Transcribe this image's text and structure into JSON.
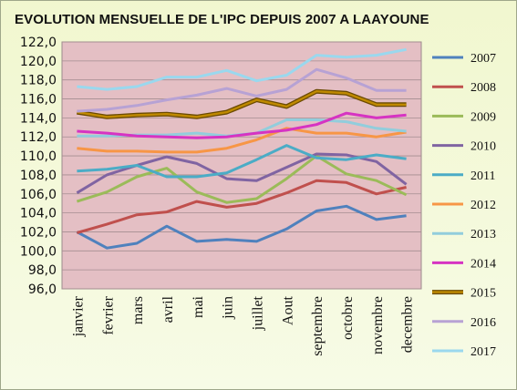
{
  "chart_data": {
    "type": "line",
    "title": "EVOLUTION MENSUELLE DE L'IPC DEPUIS 2007 A LAAYOUNE",
    "categories": [
      "janvier",
      "fevrier",
      "mars",
      "avril",
      "mai",
      "juin",
      "juillet",
      "Aout",
      "septembre",
      "octobre",
      "novembre",
      "decembre"
    ],
    "ylim": [
      96,
      122
    ],
    "ystep": 2,
    "ytick_labels": [
      "96,0",
      "98,0",
      "100,0",
      "102,0",
      "104,0",
      "106,0",
      "108,0",
      "110,0",
      "112,0",
      "114,0",
      "116,0",
      "118,0",
      "120,0",
      "122,0"
    ],
    "grid": true,
    "legend_position": "right",
    "plot_background": "#e4bfc4",
    "series": [
      {
        "name": "2007",
        "color": "#4f81bd",
        "values": [
          102.0,
          100.3,
          100.8,
          102.6,
          101.0,
          101.2,
          101.0,
          102.3,
          104.2,
          104.7,
          103.3,
          103.7
        ]
      },
      {
        "name": "2008",
        "color": "#c0504d",
        "values": [
          101.9,
          102.8,
          103.8,
          104.1,
          105.2,
          104.6,
          105.0,
          106.1,
          107.4,
          107.2,
          106.0,
          106.7
        ]
      },
      {
        "name": "2009",
        "color": "#9bbb59",
        "values": [
          105.2,
          106.2,
          107.8,
          108.7,
          106.2,
          105.1,
          105.5,
          107.6,
          110.0,
          108.1,
          107.4,
          105.9
        ]
      },
      {
        "name": "2010",
        "color": "#8064a2",
        "values": [
          106.1,
          108.0,
          109.0,
          109.9,
          109.2,
          107.6,
          107.4,
          108.8,
          110.2,
          110.1,
          109.4,
          107.0
        ]
      },
      {
        "name": "2011",
        "color": "#4bacc6",
        "values": [
          108.4,
          108.6,
          109.0,
          107.8,
          107.8,
          108.2,
          109.6,
          111.1,
          109.8,
          109.6,
          110.1,
          109.7
        ]
      },
      {
        "name": "2012",
        "color": "#f79646",
        "values": [
          110.8,
          110.5,
          110.5,
          110.4,
          110.4,
          110.8,
          111.7,
          112.9,
          112.4,
          112.4,
          112.0,
          112.5
        ]
      },
      {
        "name": "2013",
        "color": "#92cddc",
        "values": [
          112.1,
          112.1,
          112.2,
          112.2,
          112.4,
          112.1,
          112.4,
          113.8,
          113.8,
          113.6,
          112.9,
          112.6
        ]
      },
      {
        "name": "2014",
        "color": "#d633c2",
        "values": [
          112.6,
          112.4,
          112.1,
          112.0,
          111.9,
          112.0,
          112.4,
          112.7,
          113.3,
          114.5,
          114.0,
          114.3
        ]
      },
      {
        "name": "2015",
        "color": "#c08a00",
        "values": [
          114.6,
          114.1,
          114.3,
          114.4,
          114.1,
          114.6,
          115.9,
          115.2,
          116.8,
          116.6,
          115.4,
          115.4
        ]
      },
      {
        "name": "2016",
        "color": "#b7a2d4",
        "values": [
          114.7,
          114.9,
          115.3,
          115.9,
          116.4,
          117.1,
          116.3,
          117.0,
          119.1,
          118.2,
          116.9,
          116.9
        ]
      },
      {
        "name": "2017",
        "color": "#9ad8ee",
        "values": [
          117.3,
          117.0,
          117.3,
          118.3,
          118.3,
          119.0,
          117.9,
          118.5,
          120.6,
          120.4,
          120.6,
          121.2
        ]
      }
    ]
  }
}
